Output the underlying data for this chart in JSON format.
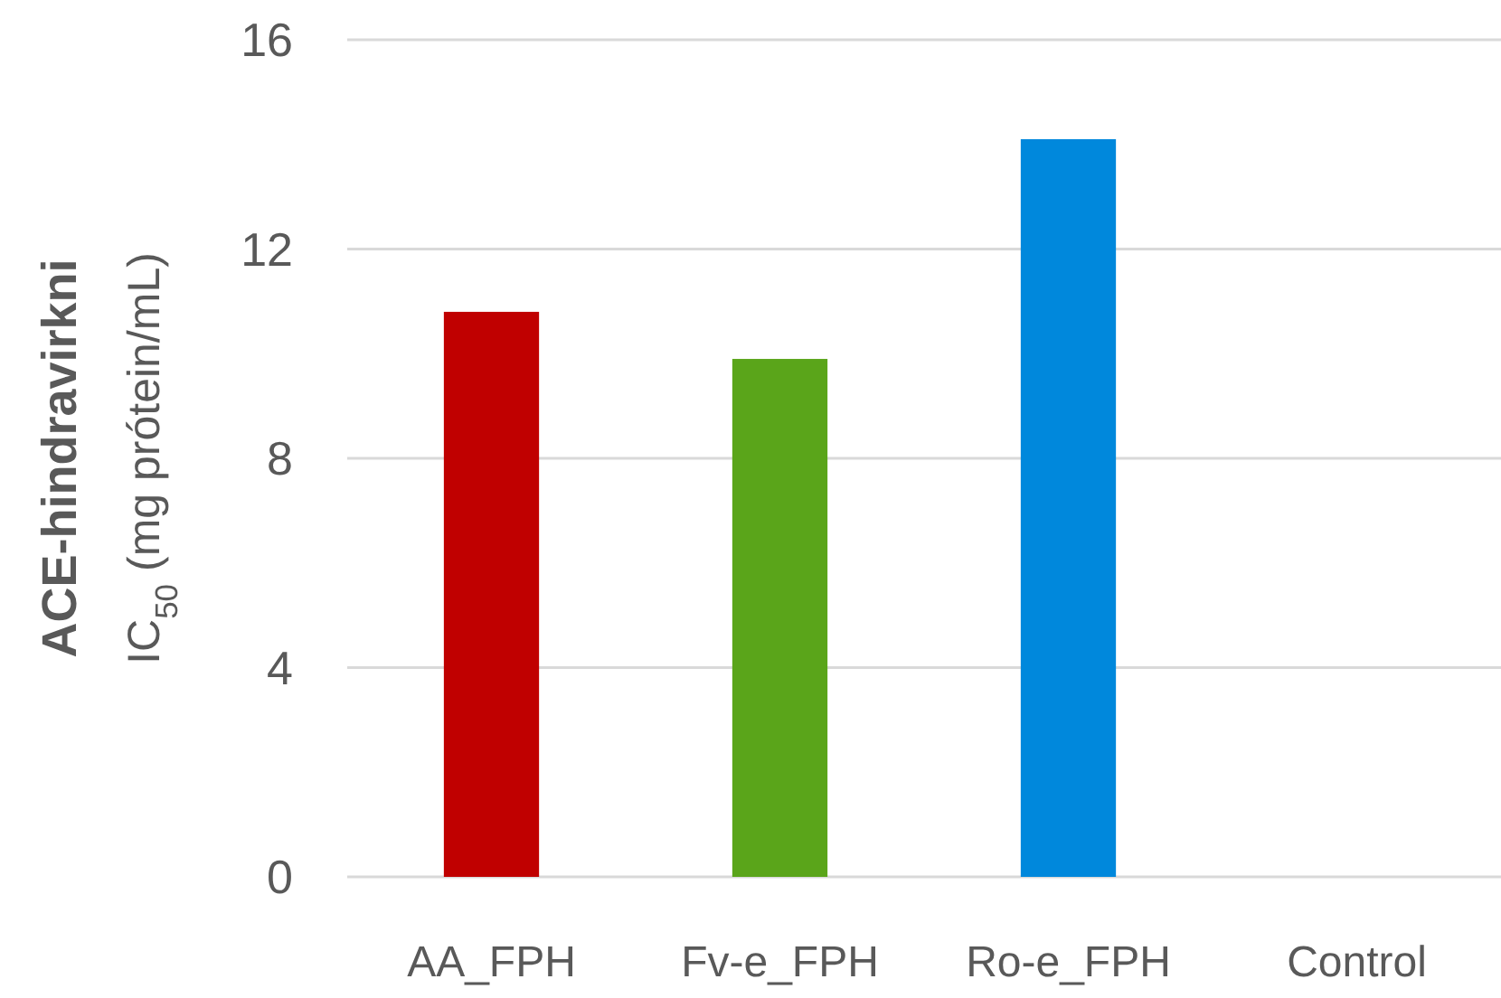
{
  "chart_data": {
    "type": "bar",
    "ylabel": "ACE-hindravirkni\nIC$_{50}$ (mg prótein/mL)",
    "categories": [
      "AA_FPH",
      "Fv-e_FPH",
      "Ro-e_FPH",
      "Control"
    ],
    "values": [
      10.8,
      9.9,
      14.1,
      null
    ],
    "colors": [
      "#c00000",
      "#5aa51a",
      "#0088dc",
      null
    ],
    "ylim": [
      0,
      16
    ],
    "yticks": [
      0,
      4,
      8,
      12,
      16
    ],
    "grid": "y"
  }
}
